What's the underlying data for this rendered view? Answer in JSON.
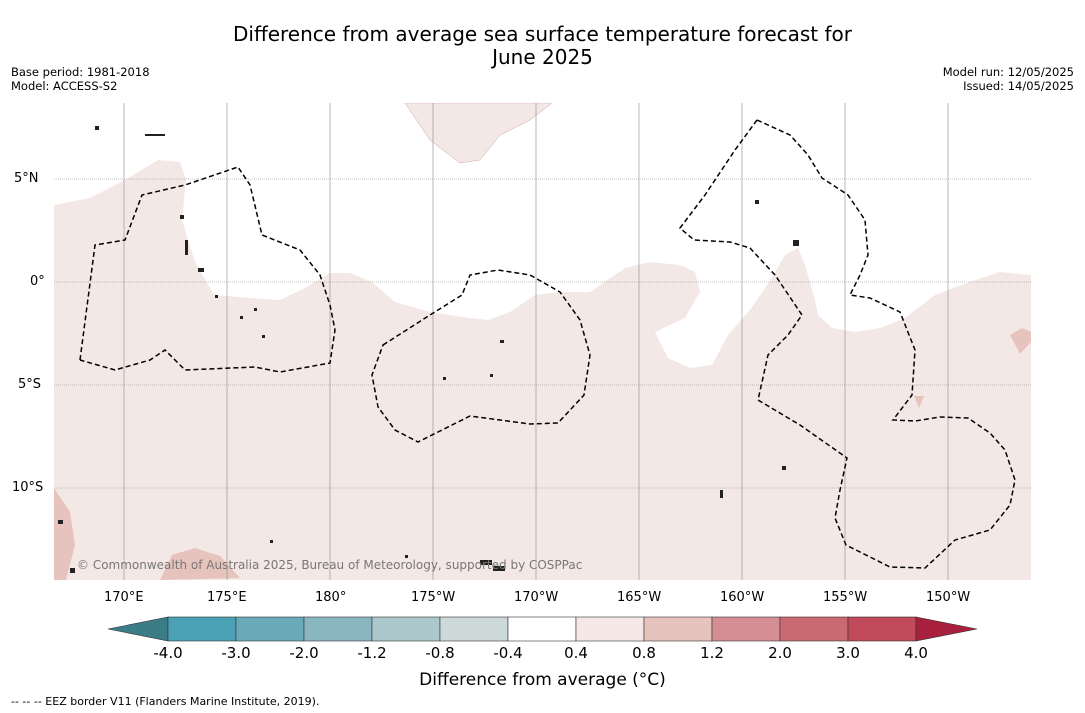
{
  "title_line1": "Difference from average sea surface temperature forecast for",
  "title_line2": "June 2025",
  "left_info": {
    "base_period": "Base period: 1981-2018",
    "model": "Model: ACCESS-S2"
  },
  "right_info": {
    "model_run": "Model run: 12/05/2025",
    "issued": "Issued: 14/05/2025"
  },
  "lat_labels": [
    "5°N",
    "0°",
    "5°S",
    "10°S"
  ],
  "lon_labels": [
    "170°E",
    "175°E",
    "180°",
    "175°W",
    "170°W",
    "165°W",
    "160°W",
    "155°W",
    "150°W"
  ],
  "copyright": "© Commonwealth of Australia 2025, Bureau of Meteorology, supported by COSPPac",
  "colorbar": {
    "title": "Difference from average (°C)",
    "ticks": [
      "-4.0",
      "-3.0",
      "-2.0",
      "-1.2",
      "-0.8",
      "-0.4",
      "0.4",
      "0.8",
      "1.2",
      "2.0",
      "3.0",
      "4.0"
    ],
    "colors": [
      "#3b7d86",
      "#4aa2b4",
      "#6aaab8",
      "#8ab6c0",
      "#adc8cc",
      "#cdd8d8",
      "#ffffff",
      "#f5e8e6",
      "#e6c3bc",
      "#d48e94",
      "#c96a73",
      "#c04a5a",
      "#a8203e"
    ]
  },
  "footnote": "-- -- -- EEZ border V11 (Flanders Marine Institute, 2019)."
}
